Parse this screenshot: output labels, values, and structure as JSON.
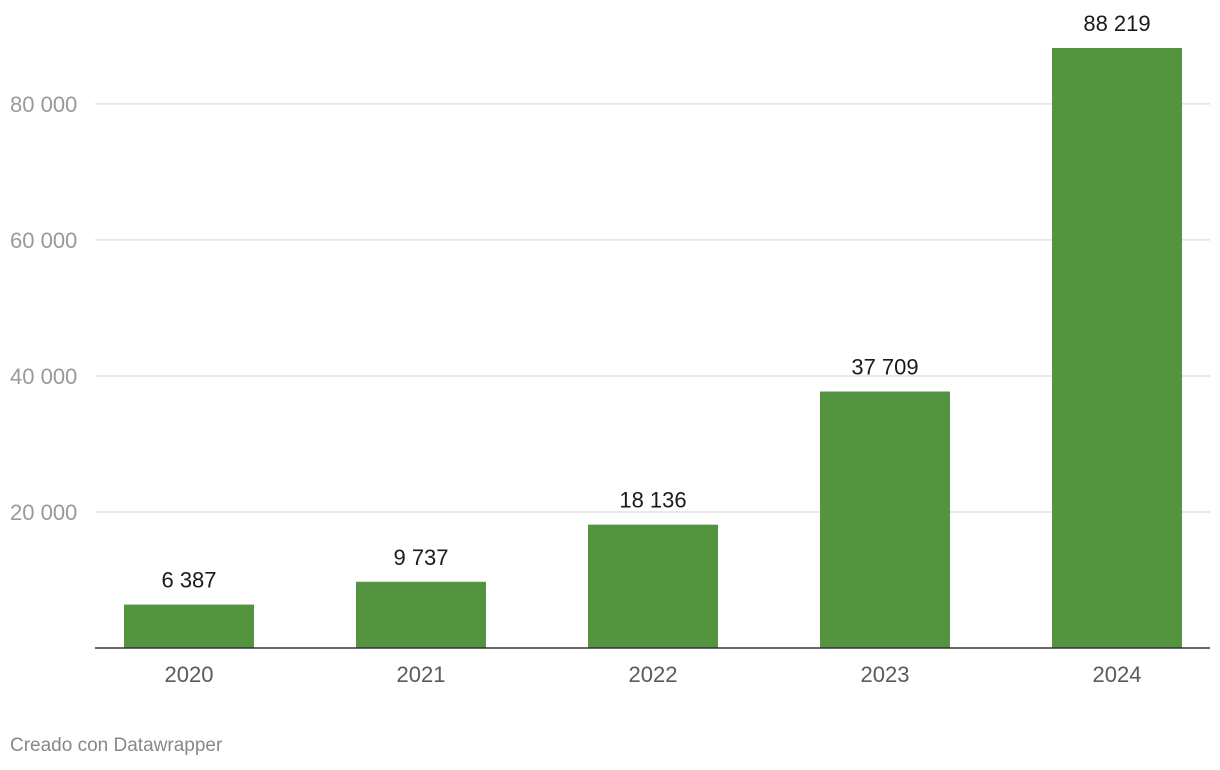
{
  "chart_data": {
    "type": "bar",
    "title": "",
    "xlabel": "",
    "ylabel": "",
    "categories": [
      "2020",
      "2021",
      "2022",
      "2023",
      "2024"
    ],
    "values": [
      6387,
      9737,
      18136,
      37709,
      88219
    ],
    "value_labels": [
      "6 387",
      "9 737",
      "18 136",
      "37 709",
      "88 219"
    ],
    "ylim": [
      0,
      88219
    ],
    "yticks": [
      20000,
      40000,
      60000,
      80000
    ],
    "ytick_labels": [
      "20 000",
      "40 000",
      "60 000",
      "80 000"
    ],
    "grid": true,
    "legend": "none",
    "bar_color": "#54933f"
  },
  "footer": {
    "credit": "Creado con Datawrapper"
  }
}
